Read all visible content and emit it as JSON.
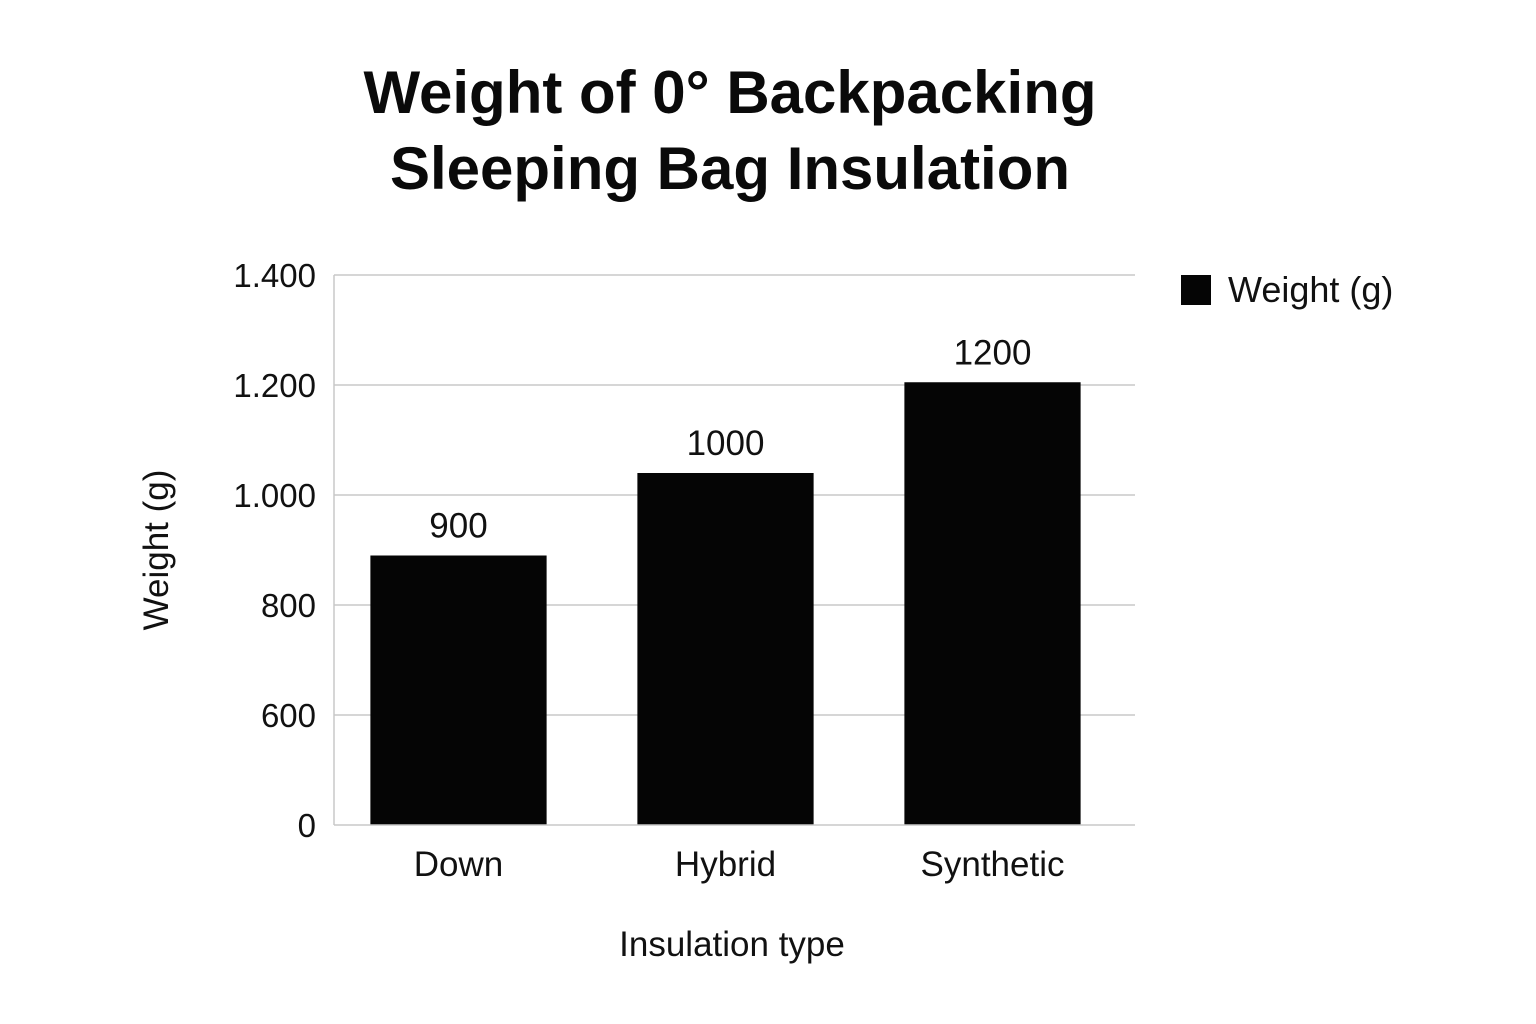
{
  "chart_data": {
    "type": "bar",
    "title_lines": [
      "Weight of 0° Backpacking",
      "Sleeping Bag Insulation"
    ],
    "xlabel": "Insulation type",
    "ylabel": "Weight (g)",
    "categories": [
      "Down",
      "Hybrid",
      "Synthetic"
    ],
    "series": [
      {
        "name": "Weight (g)",
        "values": [
          890,
          1040,
          1205
        ],
        "data_labels": [
          "900",
          "1000",
          "1200"
        ],
        "color": "#050505"
      }
    ],
    "y_ticks": [
      {
        "label": "0",
        "value": 0
      },
      {
        "label": "600",
        "value": 600
      },
      {
        "label": "800",
        "value": 800
      },
      {
        "label": "1.000",
        "value": 1000
      },
      {
        "label": "1.200",
        "value": 1200
      },
      {
        "label": "1.400",
        "value": 1400
      }
    ],
    "ylim": [
      0,
      1400
    ],
    "grid": true,
    "grid_color": "#c8c8c8",
    "legend_position": "top-right"
  }
}
